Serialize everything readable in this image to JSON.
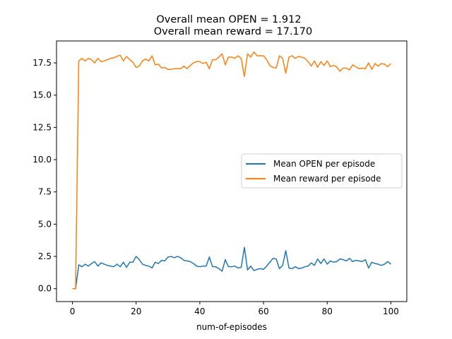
{
  "chart_data": {
    "type": "line",
    "title_lines": [
      "Overall mean OPEN = 1.912",
      "Overall mean reward = 17.170"
    ],
    "xlabel": "num-of-episodes",
    "ylabel": "",
    "xlim": [
      -5,
      105
    ],
    "ylim": [
      -1.0,
      19.2
    ],
    "x_ticks": [
      0,
      20,
      40,
      60,
      80,
      100
    ],
    "x_tick_labels": [
      "0",
      "20",
      "40",
      "60",
      "80",
      "100"
    ],
    "y_ticks": [
      0.0,
      2.5,
      5.0,
      7.5,
      10.0,
      12.5,
      15.0,
      17.5
    ],
    "y_tick_labels": [
      "0.0",
      "2.5",
      "5.0",
      "7.5",
      "10.0",
      "12.5",
      "15.0",
      "17.5"
    ],
    "grid": false,
    "legend_position": "center-right",
    "x": [
      0,
      1,
      2,
      3,
      4,
      5,
      6,
      7,
      8,
      9,
      10,
      11,
      12,
      13,
      14,
      15,
      16,
      17,
      18,
      19,
      20,
      21,
      22,
      23,
      24,
      25,
      26,
      27,
      28,
      29,
      30,
      31,
      32,
      33,
      34,
      35,
      36,
      37,
      38,
      39,
      40,
      41,
      42,
      43,
      44,
      45,
      46,
      47,
      48,
      49,
      50,
      51,
      52,
      53,
      54,
      55,
      56,
      57,
      58,
      59,
      60,
      61,
      62,
      63,
      64,
      65,
      66,
      67,
      68,
      69,
      70,
      71,
      72,
      73,
      74,
      75,
      76,
      77,
      78,
      79,
      80,
      81,
      82,
      83,
      84,
      85,
      86,
      87,
      88,
      89,
      90,
      91,
      92,
      93,
      94,
      95,
      96,
      97,
      98,
      99,
      100
    ],
    "series": [
      {
        "name": "Mean OPEN per episode",
        "color": "#1f77b4",
        "values": [
          0.0,
          0.0,
          1.85,
          1.7,
          1.9,
          1.75,
          1.95,
          2.1,
          1.75,
          2.0,
          1.9,
          1.8,
          1.75,
          1.7,
          1.9,
          1.7,
          2.05,
          1.65,
          2.05,
          2.05,
          2.5,
          2.25,
          1.9,
          1.8,
          1.75,
          1.6,
          2.05,
          1.95,
          2.2,
          2.15,
          2.45,
          2.5,
          2.4,
          2.5,
          2.4,
          2.2,
          2.15,
          2.1,
          1.95,
          1.75,
          1.7,
          1.75,
          1.75,
          2.45,
          1.7,
          1.7,
          1.55,
          1.35,
          2.25,
          1.7,
          1.7,
          1.75,
          1.6,
          1.65,
          3.2,
          1.45,
          1.75,
          1.4,
          1.5,
          1.55,
          1.5,
          1.75,
          2.05,
          2.35,
          2.3,
          1.55,
          1.8,
          2.95,
          1.6,
          1.55,
          1.7,
          1.55,
          1.6,
          1.7,
          1.75,
          2.0,
          1.8,
          2.3,
          1.95,
          2.3,
          1.9,
          2.15,
          2.05,
          2.1,
          2.3,
          2.25,
          2.15,
          2.35,
          2.1,
          2.2,
          2.15,
          2.1,
          2.25,
          1.6,
          2.05,
          1.95,
          1.9,
          1.8,
          1.9,
          2.1,
          1.9
        ]
      },
      {
        "name": "Mean reward per episode",
        "color": "#ff7f0e",
        "values": [
          0.0,
          0.0,
          17.65,
          17.85,
          17.65,
          17.85,
          17.75,
          17.5,
          17.85,
          17.6,
          17.65,
          17.75,
          17.85,
          17.9,
          18.0,
          18.1,
          17.65,
          18.0,
          17.75,
          17.55,
          17.15,
          17.25,
          17.65,
          17.8,
          17.65,
          18.05,
          17.35,
          17.4,
          17.1,
          17.15,
          17.0,
          17.0,
          17.05,
          17.05,
          17.05,
          17.25,
          17.05,
          17.3,
          17.5,
          17.6,
          17.6,
          17.45,
          17.55,
          17.05,
          17.75,
          17.75,
          17.95,
          18.2,
          17.35,
          17.95,
          17.95,
          17.85,
          18.05,
          17.85,
          16.45,
          18.2,
          17.95,
          18.35,
          18.05,
          18.05,
          18.05,
          17.75,
          17.3,
          17.15,
          17.1,
          18.05,
          17.85,
          16.7,
          17.95,
          18.05,
          17.85,
          18.0,
          17.95,
          17.85,
          17.6,
          17.25,
          17.65,
          17.15,
          17.6,
          17.3,
          17.65,
          17.2,
          17.3,
          17.2,
          16.85,
          17.1,
          17.1,
          16.95,
          17.35,
          17.2,
          17.05,
          17.1,
          17.05,
          17.5,
          17.0,
          17.45,
          17.25,
          17.45,
          17.4,
          17.2,
          17.45
        ]
      }
    ]
  }
}
